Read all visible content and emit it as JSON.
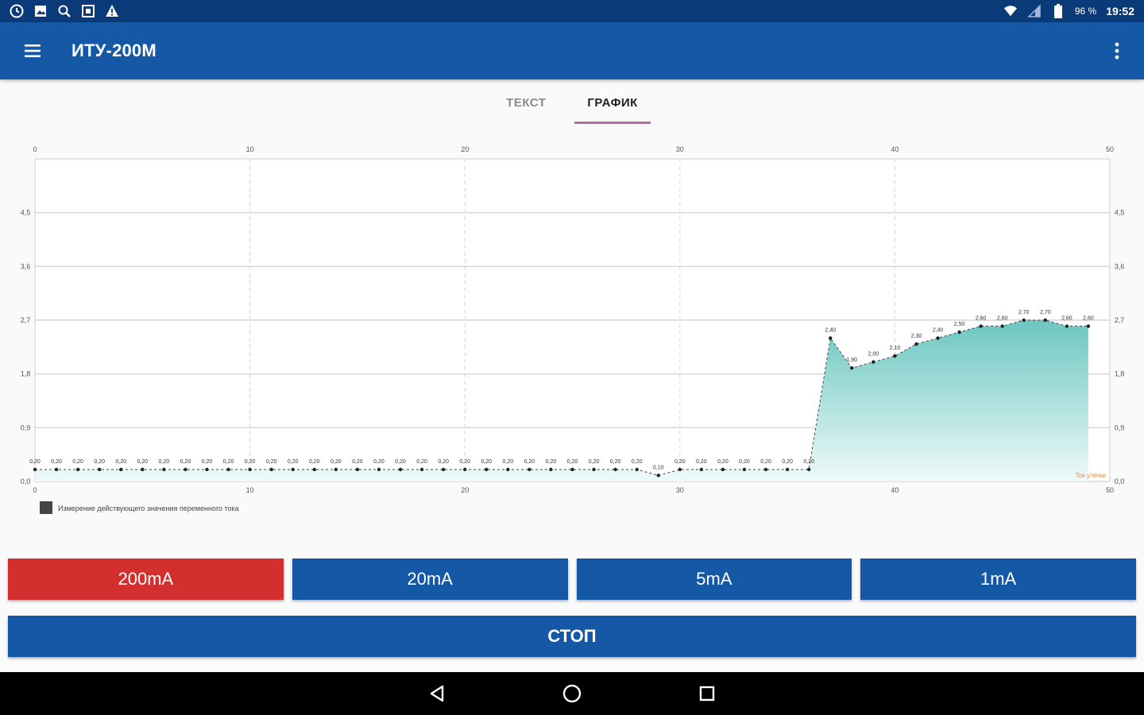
{
  "status_bar": {
    "battery": "96 %",
    "time": "19:52",
    "left_icons": [
      "clock-icon",
      "image-icon",
      "search-icon",
      "screenshot-icon",
      "warning-icon"
    ],
    "right_icons": [
      "wifi-icon",
      "signal-icon",
      "battery-icon"
    ]
  },
  "app_bar": {
    "title": "ИТУ-200М"
  },
  "tabs": [
    {
      "label": "ТЕКСТ",
      "active": false
    },
    {
      "label": "ГРАФИК",
      "active": true
    }
  ],
  "chart_data": {
    "type": "area",
    "x_range": [
      0,
      50
    ],
    "y_range": [
      0,
      5.4
    ],
    "x_ticks": [
      0,
      10,
      20,
      30,
      40,
      50
    ],
    "x_tick_labels": [
      "0",
      "10",
      "20",
      "30",
      "40",
      "50"
    ],
    "y_ticks": [
      0,
      0.9,
      1.8,
      2.7,
      3.6,
      4.5
    ],
    "y_tick_labels": [
      "0,0",
      "0,9",
      "1,8",
      "2,7",
      "3,6",
      "4,5"
    ],
    "grid": true,
    "legend": "Измерение действующего значения переменного тока",
    "legend_position": "bottom-left",
    "annotation": "Ток утечки",
    "colors": {
      "fill_top": "#6cc6c0",
      "fill_bottom": "#eefaf9",
      "line": "#3a8a84",
      "marker": "#222222",
      "series_line": "#444444"
    },
    "series": [
      {
        "x": [
          0,
          1,
          2,
          3,
          4,
          5,
          6,
          7,
          8,
          9,
          10,
          11,
          12,
          13,
          14,
          15,
          16,
          17,
          18,
          19,
          20,
          21,
          22,
          23,
          24,
          25,
          26,
          27,
          28,
          29,
          30,
          31,
          32,
          33,
          34,
          35,
          36,
          37,
          38,
          39,
          40,
          41,
          42,
          43,
          44,
          45,
          46,
          47,
          48,
          49
        ],
        "y": [
          0.2,
          0.2,
          0.2,
          0.2,
          0.2,
          0.2,
          0.2,
          0.2,
          0.2,
          0.2,
          0.2,
          0.2,
          0.2,
          0.2,
          0.2,
          0.2,
          0.2,
          0.2,
          0.2,
          0.2,
          0.2,
          0.2,
          0.2,
          0.2,
          0.2,
          0.2,
          0.2,
          0.2,
          0.2,
          0.1,
          0.2,
          0.2,
          0.2,
          0.2,
          0.2,
          0.2,
          0.2,
          2.4,
          1.9,
          2.0,
          2.1,
          2.3,
          2.4,
          2.5,
          2.6,
          2.6,
          2.7,
          2.7,
          2.6,
          2.6
        ],
        "labels": [
          "0,20",
          "0,20",
          "0,20",
          "0,20",
          "0,20",
          "0,20",
          "0,20",
          "0,20",
          "0,20",
          "0,20",
          "0,20",
          "0,20",
          "0,20",
          "0,20",
          "0,20",
          "0,20",
          "0,20",
          "0,20",
          "0,20",
          "0,20",
          "0,20",
          "0,20",
          "0,20",
          "0,20",
          "0,20",
          "0,20",
          "0,20",
          "0,20",
          "0,20",
          "0,10",
          "0,20",
          "0,20",
          "0,20",
          "0,20",
          "0,20",
          "0,20",
          "0,20",
          "2,40",
          "1,90",
          "2,00",
          "2,10",
          "2,30",
          "2,40",
          "2,50",
          "2,60",
          "2,60",
          "2,70",
          "2,70",
          "2,60",
          "2,60"
        ]
      }
    ]
  },
  "range_buttons": [
    {
      "label": "200mA",
      "selected": true
    },
    {
      "label": "20mA",
      "selected": false
    },
    {
      "label": "5mA",
      "selected": false
    },
    {
      "label": "1mA",
      "selected": false
    }
  ],
  "stop_button": {
    "label": "СТОП"
  }
}
